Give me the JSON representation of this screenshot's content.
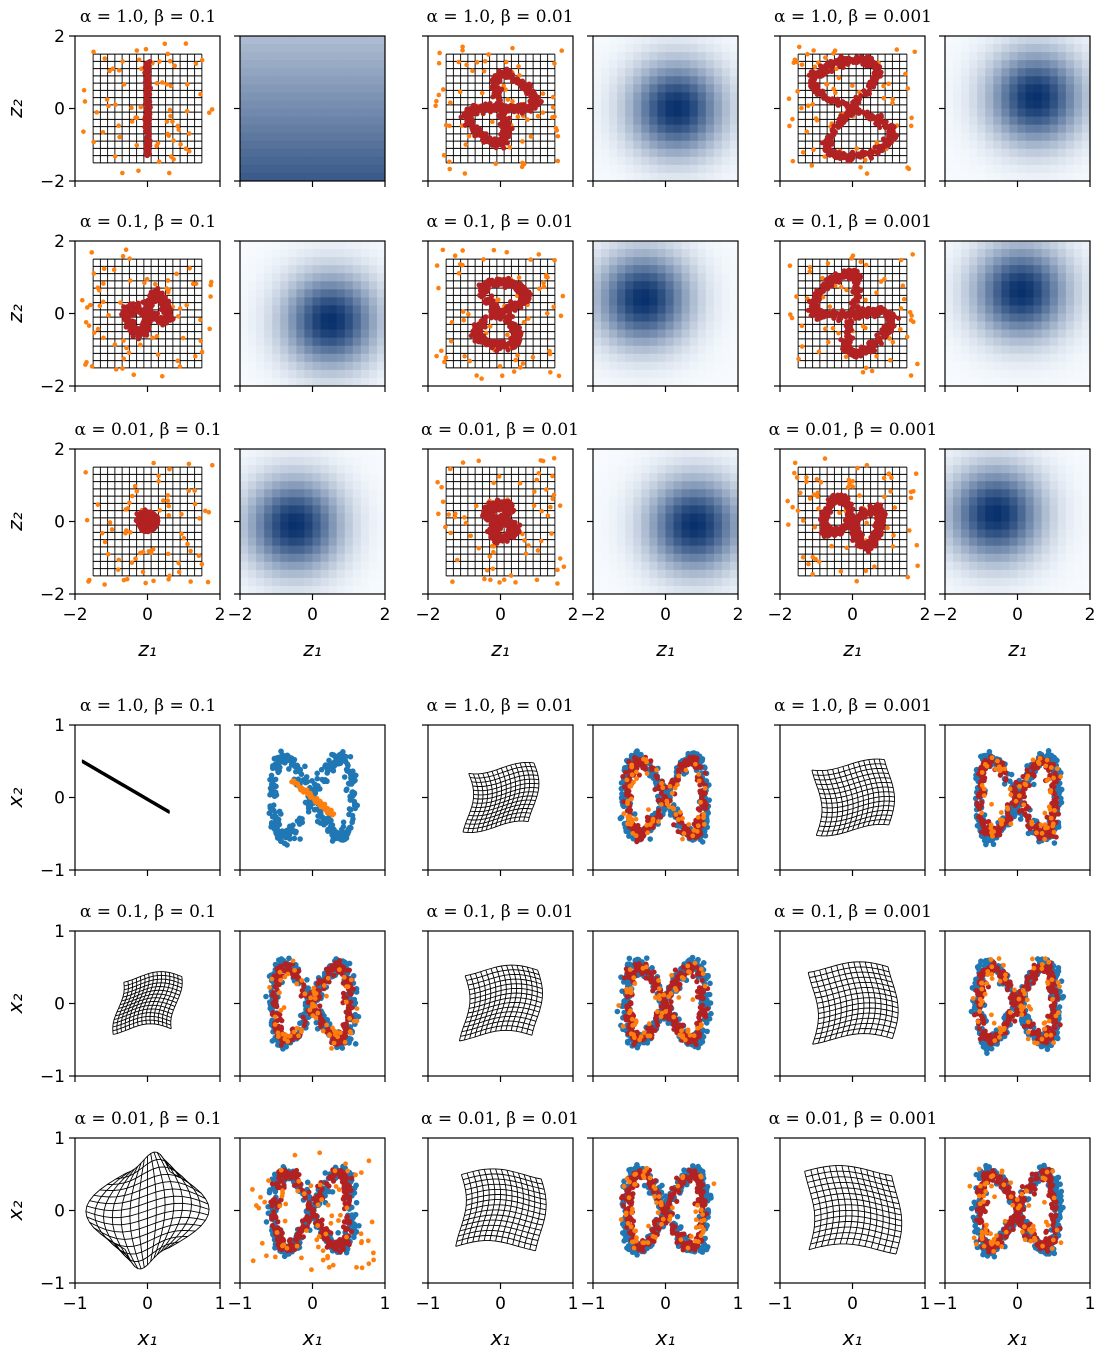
{
  "colors": {
    "orange": "#ff7f0e",
    "red": "#b22222",
    "blue": "#1f77b4",
    "heat_light": "#f7fbff",
    "heat_dark": "#08306b"
  },
  "chart_data": [
    {
      "type": "scatter",
      "section": "latent",
      "rows_alpha": [
        "1.0",
        "0.1",
        "0.01"
      ],
      "cols_beta": [
        "0.1",
        "0.01",
        "0.001"
      ],
      "titles": [
        [
          "α = 1.0, β = 0.1",
          "α = 1.0, β = 0.01",
          "α = 1.0, β = 0.001"
        ],
        [
          "α = 0.1, β = 0.1",
          "α = 0.1, β = 0.01",
          "α = 0.1, β = 0.001"
        ],
        [
          "α = 0.01, β = 0.1",
          "α = 0.01, β = 0.01",
          "α = 0.01, β = 0.001"
        ]
      ],
      "xlabel": "z₁",
      "ylabel": "z₂",
      "xlim": [
        -2,
        2
      ],
      "ylim": [
        -2,
        2
      ],
      "xticks": [
        "−2",
        "0",
        "2"
      ],
      "yticks": [
        "2",
        "0",
        "−2"
      ],
      "grid_extent": [
        -1.5,
        1.5
      ],
      "panels_per_cell": [
        "latent scatter with grid",
        "density heatmap"
      ]
    },
    {
      "type": "scatter",
      "section": "data",
      "rows_alpha": [
        "1.0",
        "0.1",
        "0.01"
      ],
      "cols_beta": [
        "0.1",
        "0.01",
        "0.001"
      ],
      "titles": [
        [
          "α = 1.0, β = 0.1",
          "α = 1.0, β = 0.01",
          "α = 1.0, β = 0.001"
        ],
        [
          "α = 0.1, β = 0.1",
          "α = 0.1, β = 0.01",
          "α = 0.1, β = 0.001"
        ],
        [
          "α = 0.01, β = 0.1",
          "α = 0.01, β = 0.01",
          "α = 0.01, β = 0.001"
        ]
      ],
      "xlabel": "x₁",
      "ylabel": "x₂",
      "xlim": [
        -1,
        1
      ],
      "ylim": [
        -1,
        1
      ],
      "xticks": [
        "−1",
        "0",
        "1"
      ],
      "yticks": [
        "1",
        "0",
        "−1"
      ],
      "panels_per_cell": [
        "decoded grid",
        "data scatter"
      ]
    }
  ]
}
